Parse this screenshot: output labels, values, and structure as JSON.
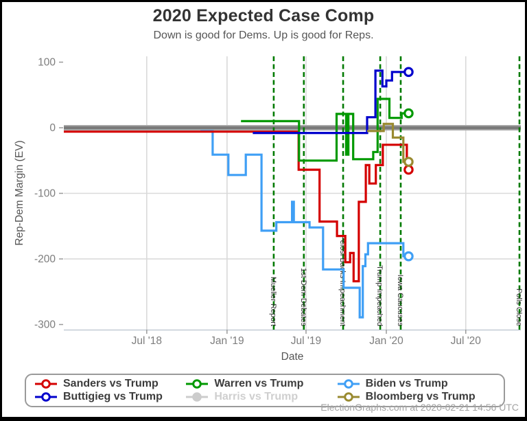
{
  "chart_data": {
    "type": "line",
    "step": true,
    "title": "2020 Expected Case Comp",
    "subtitle": "Down is good for Dems. Up is good for Reps.",
    "xlabel": "Date",
    "ylabel": "Rep-Dem Margin (EV)",
    "ylim": [
      -300,
      100
    ],
    "x_range": [
      "2017-12-20",
      "2020-11-05"
    ],
    "grid": true,
    "legend_position": "bottom",
    "zero_line": {
      "value": 0,
      "color": "#7a7a7a"
    },
    "event_line_color": "#007a00",
    "yticks": [
      {
        "v": 100,
        "label": "100",
        "grid": false
      },
      {
        "v": 0,
        "label": "0",
        "grid": false
      },
      {
        "v": -100,
        "label": "-100",
        "grid": true
      },
      {
        "v": -200,
        "label": "-200",
        "grid": true
      },
      {
        "v": -300,
        "label": "-300",
        "grid": false
      }
    ],
    "xticks": [
      {
        "date": "2018-07-01",
        "label": "Jul '18"
      },
      {
        "date": "2019-01-01",
        "label": "Jan '19"
      },
      {
        "date": "2019-07-01",
        "label": "Jul '19"
      },
      {
        "date": "2020-01-01",
        "label": "Jan '20"
      },
      {
        "date": "2020-07-01",
        "label": "Jul '20"
      }
    ],
    "events": [
      {
        "date": "2019-04-18",
        "label": "Mueller Report"
      },
      {
        "date": "2019-06-26",
        "label": "1st Dem Debates"
      },
      {
        "date": "2019-09-24",
        "label": "Pelosi Backs Impeachment"
      },
      {
        "date": "2019-12-18",
        "label": "Trump Impeached"
      },
      {
        "date": "2020-02-03",
        "label": "Iowa Caucuses"
      },
      {
        "date": "2020-11-03",
        "label": "Polls Close"
      }
    ],
    "series": [
      {
        "name": "Sanders vs Trump",
        "color": "#d40000",
        "disabled": false,
        "end_marker": true,
        "points": [
          [
            "2017-12-20",
            -6
          ],
          [
            "2019-06-14",
            -64
          ],
          [
            "2019-08-01",
            -143
          ],
          [
            "2019-09-10",
            -165
          ],
          [
            "2019-09-29",
            -205
          ],
          [
            "2019-10-10",
            -191
          ],
          [
            "2019-10-18",
            -234
          ],
          [
            "2019-10-30",
            -113
          ],
          [
            "2019-11-15",
            -57
          ],
          [
            "2019-11-23",
            -85
          ],
          [
            "2019-12-08",
            -57
          ],
          [
            "2019-12-24",
            -26
          ],
          [
            "2020-02-17",
            -64
          ],
          [
            "2020-02-21",
            -64
          ]
        ]
      },
      {
        "name": "Buttigieg vs Trump",
        "color": "#0000cc",
        "disabled": false,
        "end_marker": true,
        "points": [
          [
            "2019-03-01",
            -8
          ],
          [
            "2019-11-18",
            16
          ],
          [
            "2019-12-07",
            87
          ],
          [
            "2019-12-23",
            63
          ],
          [
            "2020-01-01",
            72
          ],
          [
            "2020-01-14",
            85
          ],
          [
            "2020-02-21",
            85
          ]
        ]
      },
      {
        "name": "Warren vs Trump",
        "color": "#009900",
        "disabled": false,
        "end_marker": true,
        "points": [
          [
            "2019-02-02",
            10
          ],
          [
            "2019-06-15",
            -50
          ],
          [
            "2019-09-09",
            21
          ],
          [
            "2019-10-01",
            -41
          ],
          [
            "2019-10-06",
            21
          ],
          [
            "2019-10-17",
            -48
          ],
          [
            "2019-12-02",
            -37
          ],
          [
            "2019-12-12",
            44
          ],
          [
            "2020-01-08",
            15
          ],
          [
            "2020-02-05",
            22
          ],
          [
            "2020-02-21",
            22
          ]
        ]
      },
      {
        "name": "Harris vs Trump",
        "color": "#cccccc",
        "disabled": true,
        "end_marker": false,
        "points": []
      },
      {
        "name": "Biden vs Trump",
        "color": "#3f9ff5",
        "disabled": false,
        "end_marker": true,
        "points": [
          [
            "2018-11-01",
            -5
          ],
          [
            "2018-11-29",
            -41
          ],
          [
            "2019-01-04",
            -72
          ],
          [
            "2019-02-13",
            -41
          ],
          [
            "2019-03-21",
            -157
          ],
          [
            "2019-04-24",
            -144
          ],
          [
            "2019-05-30",
            -113
          ],
          [
            "2019-06-03",
            -144
          ],
          [
            "2019-07-09",
            -152
          ],
          [
            "2019-08-09",
            -216
          ],
          [
            "2019-09-25",
            -244
          ],
          [
            "2019-11-01",
            -289
          ],
          [
            "2019-11-08",
            -211
          ],
          [
            "2019-11-14",
            -193
          ],
          [
            "2019-11-20",
            -176
          ],
          [
            "2020-02-09",
            -196
          ],
          [
            "2020-02-21",
            -196
          ]
        ]
      },
      {
        "name": "Bloomberg vs Trump",
        "color": "#998a30",
        "disabled": false,
        "end_marker": true,
        "points": [
          [
            "2019-11-18",
            -5
          ],
          [
            "2019-12-26",
            6
          ],
          [
            "2020-01-16",
            -15
          ],
          [
            "2020-02-09",
            -52
          ],
          [
            "2020-02-21",
            -52
          ]
        ]
      }
    ]
  },
  "footer": {
    "credit": "ElectionGraphs.com at 2020-02-21 14:56 UTC"
  }
}
